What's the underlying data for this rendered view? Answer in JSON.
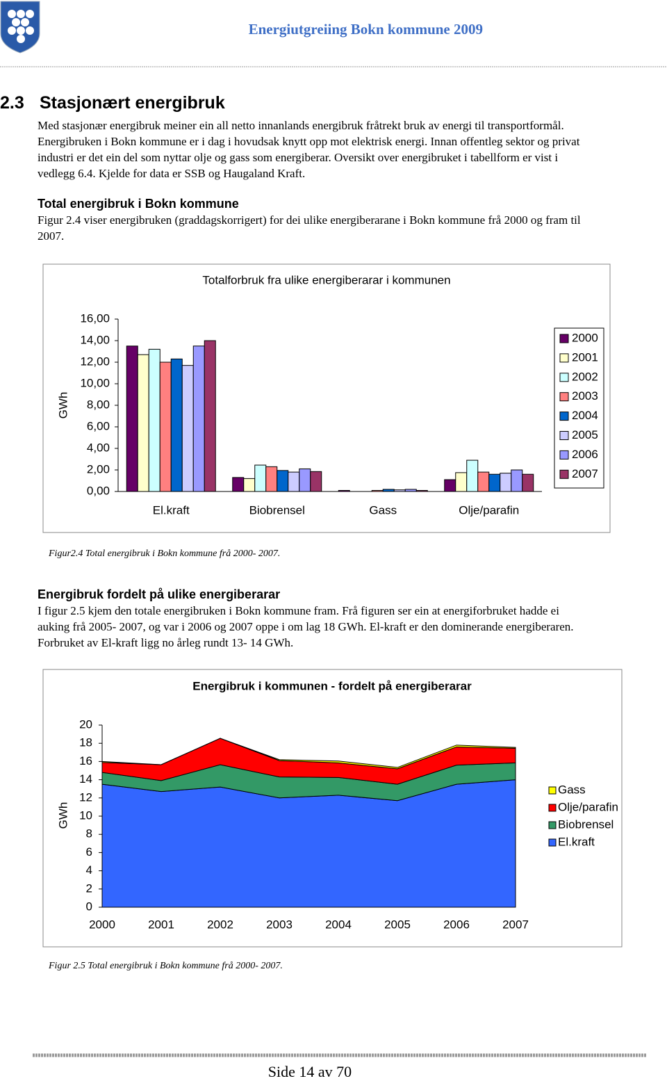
{
  "header": {
    "title": "Energiutgreiing Bokn kommune 2009"
  },
  "section": {
    "number": "2.3",
    "title": "Stasjonært energibruk"
  },
  "intro": [
    "Med stasjonær energibruk meiner ein all netto innanlands energibruk fråtrekt bruk av energi til transportformål.",
    "Energibruken i Bokn kommune er i dag i hovudsak knytt opp mot elektrisk energi. Innan offentleg sektor og privat",
    "industri er det ein del som nyttar olje og gass som energiberar. Oversikt over energibruket i tabellform er vist i",
    "vedlegg 6.4. Kjelde for data er SSB og Haugaland Kraft."
  ],
  "subsections": [
    {
      "heading": "Total energibruk i Bokn kommune",
      "lines": [
        "Figur 2.4 viser energibruken (graddagskorrigert) for dei ulike energiberarane i Bokn kommune frå 2000 og fram til",
        "2007."
      ],
      "caption": "Figur2.4 Total energibruk i Bokn kommune frå 2000- 2007."
    },
    {
      "heading": "Energibruk fordelt på ulike energiberarar",
      "lines": [
        "I figur 2.5 kjem den totale energibruken i Bokn kommune fram. Frå figuren ser ein at energiforbruket hadde ei",
        "auking frå 2005- 2007, og var i 2006 og 2007 oppe i om lag 18 GWh. El-kraft er den dominerande energiberaren.",
        "Forbruket av El-kraft ligg no årleg rundt 13- 14 GWh."
      ],
      "caption": "Figur 2.5  Total energibruk i Bokn kommune frå 2000- 2007."
    }
  ],
  "chart_data": [
    {
      "type": "bar",
      "title": "Totalforbruk fra ulike energiberarar i kommunen",
      "y_label": "GWh",
      "categories": [
        "El.kraft",
        "Biobrensel",
        "Gass",
        "Olje/parafin"
      ],
      "series": [
        {
          "name": "2000",
          "color": "#660066",
          "values": [
            13.5,
            1.3,
            0.1,
            1.1
          ]
        },
        {
          "name": "2001",
          "color": "#FFFFCC",
          "values": [
            12.7,
            1.2,
            0,
            1.75
          ]
        },
        {
          "name": "2002",
          "color": "#CCFFFF",
          "values": [
            13.2,
            2.45,
            0,
            2.9
          ]
        },
        {
          "name": "2003",
          "color": "#FF8080",
          "values": [
            12.0,
            2.3,
            0.1,
            1.8
          ]
        },
        {
          "name": "2004",
          "color": "#0066CC",
          "values": [
            12.3,
            1.95,
            0.2,
            1.6
          ]
        },
        {
          "name": "2005",
          "color": "#CCCCFF",
          "values": [
            11.7,
            1.8,
            0.15,
            1.7
          ]
        },
        {
          "name": "2006",
          "color": "#9999FF",
          "values": [
            13.5,
            2.1,
            0.2,
            2.0
          ]
        },
        {
          "name": "2007",
          "color": "#993366",
          "values": [
            14.0,
            1.85,
            0.1,
            1.6
          ]
        }
      ],
      "ylim": [
        0,
        16
      ],
      "yticks": [
        {
          "value": 0,
          "label": "0,00"
        },
        {
          "value": 2,
          "label": "2,00"
        },
        {
          "value": 4,
          "label": "4,00"
        },
        {
          "value": 6,
          "label": "6,00"
        },
        {
          "value": 8,
          "label": "8,00"
        },
        {
          "value": 10,
          "label": "10,00"
        },
        {
          "value": 12,
          "label": "12,00"
        },
        {
          "value": 14,
          "label": "14,00"
        },
        {
          "value": 16,
          "label": "16,00"
        }
      ],
      "grid": false,
      "legend": "right"
    },
    {
      "type": "area",
      "stacked": true,
      "title": "Energibruk i kommunen - fordelt på energiberarar",
      "y_label": "GWh",
      "categories": [
        "2000",
        "2001",
        "2002",
        "2003",
        "2004",
        "2005",
        "2006",
        "2007"
      ],
      "series": [
        {
          "name": "El.kraft",
          "color": "#3366FF",
          "values": [
            13.5,
            12.7,
            13.2,
            12.0,
            12.3,
            11.7,
            13.5,
            14.0
          ]
        },
        {
          "name": "Biobrensel",
          "color": "#339966",
          "values": [
            1.3,
            1.2,
            2.45,
            2.3,
            1.95,
            1.8,
            2.1,
            1.85
          ]
        },
        {
          "name": "Olje/parafin",
          "color": "#FF0000",
          "values": [
            1.1,
            1.75,
            2.9,
            1.8,
            1.6,
            1.7,
            2.0,
            1.6
          ]
        },
        {
          "name": "Gass",
          "color": "#FFFF00",
          "values": [
            0.1,
            0,
            0,
            0.1,
            0.2,
            0.15,
            0.2,
            0.1
          ]
        }
      ],
      "ylim": [
        0,
        20
      ],
      "yticks": [
        0,
        2,
        4,
        6,
        8,
        10,
        12,
        14,
        16,
        18,
        20
      ],
      "grid": false,
      "legend": "right"
    }
  ],
  "footer": {
    "page": "Side 14 av 70"
  }
}
